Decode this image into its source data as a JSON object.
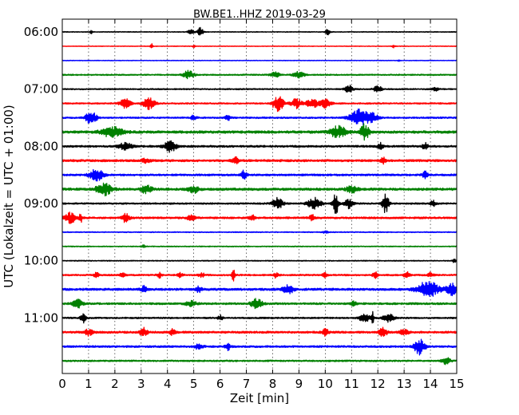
{
  "chart_data": {
    "type": "line",
    "title": "BW.BE1..HHZ 2019-03-29",
    "xlabel": "Zeit  [min]",
    "ylabel": "UTC (Lokalzeit = UTC + 01:00)",
    "xlim": [
      0,
      15
    ],
    "x_ticks": [
      "0",
      "1",
      "2",
      "3",
      "4",
      "5",
      "6",
      "7",
      "8",
      "9",
      "10",
      "11",
      "12",
      "13",
      "14",
      "15"
    ],
    "y_tick_labels": [
      "06:00",
      "07:00",
      "08:00",
      "09:00",
      "10:00",
      "11:00"
    ],
    "line_interval_minutes": 15,
    "trace_colors": [
      "#000000",
      "#ff0000",
      "#0000ff",
      "#008000"
    ],
    "grid": "vertical dotted at each minute",
    "traces": [
      {
        "start": "06:00",
        "color": "#000000",
        "noise": 0.5,
        "events": [
          [
            1.1,
            2.5,
            0.05
          ],
          [
            4.9,
            2.5,
            0.12
          ],
          [
            5.25,
            5.5,
            0.1
          ],
          [
            10.1,
            4,
            0.08
          ]
        ]
      },
      {
        "start": "06:15",
        "color": "#ff0000",
        "noise": 0.4,
        "events": [
          [
            3.4,
            3,
            0.05
          ],
          [
            5.0,
            1.5,
            0.05
          ],
          [
            12.6,
            2,
            0.05
          ]
        ]
      },
      {
        "start": "06:30",
        "color": "#0000ff",
        "noise": 0.4,
        "events": [
          [
            12.8,
            1.2,
            0.05
          ]
        ]
      },
      {
        "start": "06:45",
        "color": "#008000",
        "noise": 0.8,
        "events": [
          [
            4.8,
            5,
            0.2
          ],
          [
            8.1,
            3,
            0.2
          ],
          [
            9.0,
            4,
            0.2
          ]
        ]
      },
      {
        "start": "07:00",
        "color": "#000000",
        "noise": 0.8,
        "events": [
          [
            10.9,
            5,
            0.15
          ],
          [
            12.0,
            4,
            0.15
          ],
          [
            14.2,
            3,
            0.1
          ]
        ]
      },
      {
        "start": "07:15",
        "color": "#ff0000",
        "noise": 0.9,
        "events": [
          [
            2.4,
            6,
            0.2
          ],
          [
            3.3,
            7,
            0.22
          ],
          [
            8.2,
            10,
            0.2
          ],
          [
            8.9,
            6,
            0.2
          ],
          [
            9.5,
            6,
            0.2
          ],
          [
            10.0,
            6,
            0.2
          ]
        ]
      },
      {
        "start": "07:30",
        "color": "#0000ff",
        "noise": 1.0,
        "events": [
          [
            1.1,
            8,
            0.2
          ],
          [
            5.0,
            3,
            0.1
          ],
          [
            6.3,
            3,
            0.1
          ],
          [
            11.3,
            10,
            0.35
          ],
          [
            11.8,
            5,
            0.2
          ]
        ]
      },
      {
        "start": "07:45",
        "color": "#008000",
        "noise": 1.6,
        "events": [
          [
            1.9,
            6,
            0.4
          ],
          [
            10.5,
            7,
            0.3
          ],
          [
            11.5,
            10,
            0.15
          ]
        ]
      },
      {
        "start": "08:00",
        "color": "#000000",
        "noise": 1.2,
        "events": [
          [
            2.4,
            4,
            0.25
          ],
          [
            4.1,
            7,
            0.22
          ],
          [
            12.1,
            4,
            0.1
          ],
          [
            13.8,
            4,
            0.1
          ]
        ]
      },
      {
        "start": "08:15",
        "color": "#ff0000",
        "noise": 1.4,
        "events": [
          [
            3.2,
            3,
            0.15
          ],
          [
            6.6,
            5,
            0.12
          ],
          [
            12.2,
            4,
            0.1
          ]
        ]
      },
      {
        "start": "08:30",
        "color": "#0000ff",
        "noise": 1.2,
        "events": [
          [
            1.3,
            7,
            0.25
          ],
          [
            6.9,
            6,
            0.1
          ],
          [
            13.8,
            4,
            0.1
          ]
        ]
      },
      {
        "start": "08:45",
        "color": "#008000",
        "noise": 1.5,
        "events": [
          [
            1.6,
            7,
            0.3
          ],
          [
            3.2,
            5,
            0.2
          ],
          [
            5.0,
            4,
            0.2
          ],
          [
            11.0,
            4,
            0.2
          ]
        ]
      },
      {
        "start": "09:00",
        "color": "#000000",
        "noise": 1.0,
        "events": [
          [
            8.2,
            7,
            0.2
          ],
          [
            9.6,
            7,
            0.25
          ],
          [
            10.4,
            14,
            0.1
          ],
          [
            10.9,
            6,
            0.15
          ],
          [
            12.3,
            12,
            0.12
          ],
          [
            14.1,
            4,
            0.1
          ]
        ]
      },
      {
        "start": "09:15",
        "color": "#ff0000",
        "noise": 1.2,
        "events": [
          [
            0.3,
            7,
            0.2
          ],
          [
            0.7,
            8,
            0.05
          ],
          [
            2.4,
            5,
            0.15
          ],
          [
            4.9,
            3,
            0.15
          ],
          [
            7.2,
            4,
            0.1
          ],
          [
            9.5,
            4,
            0.1
          ]
        ]
      },
      {
        "start": "09:30",
        "color": "#0000ff",
        "noise": 0.6,
        "events": [
          [
            10.0,
            1.5,
            0.1
          ]
        ]
      },
      {
        "start": "09:45",
        "color": "#008000",
        "noise": 0.6,
        "events": [
          [
            3.1,
            1.5,
            0.1
          ]
        ]
      },
      {
        "start": "10:00",
        "color": "#000000",
        "noise": 0.6,
        "events": [
          [
            14.9,
            4,
            0.05
          ]
        ]
      },
      {
        "start": "10:15",
        "color": "#ff0000",
        "noise": 1.0,
        "events": [
          [
            1.3,
            3,
            0.1
          ],
          [
            2.3,
            3,
            0.1
          ],
          [
            3.7,
            3,
            0.1
          ],
          [
            4.5,
            3,
            0.1
          ],
          [
            5.3,
            3,
            0.1
          ],
          [
            6.5,
            9,
            0.05
          ],
          [
            8.1,
            3,
            0.1
          ],
          [
            10.0,
            3,
            0.1
          ],
          [
            11.9,
            4,
            0.1
          ],
          [
            13.1,
            4,
            0.1
          ],
          [
            14.0,
            3,
            0.1
          ]
        ]
      },
      {
        "start": "10:30",
        "color": "#0000ff",
        "noise": 1.4,
        "events": [
          [
            3.1,
            4,
            0.1
          ],
          [
            5.2,
            4,
            0.1
          ],
          [
            8.6,
            5,
            0.2
          ],
          [
            13.9,
            10,
            0.4
          ],
          [
            14.8,
            7,
            0.2
          ]
        ]
      },
      {
        "start": "10:45",
        "color": "#008000",
        "noise": 1.2,
        "events": [
          [
            0.6,
            5,
            0.2
          ],
          [
            4.9,
            3,
            0.2
          ],
          [
            7.4,
            7,
            0.2
          ],
          [
            11.1,
            3,
            0.1
          ]
        ]
      },
      {
        "start": "11:00",
        "color": "#000000",
        "noise": 1.0,
        "events": [
          [
            0.8,
            6,
            0.1
          ],
          [
            6.0,
            3,
            0.1
          ],
          [
            11.5,
            5,
            0.2
          ],
          [
            11.8,
            8,
            0.05
          ],
          [
            12.4,
            5,
            0.2
          ]
        ]
      },
      {
        "start": "11:15",
        "color": "#ff0000",
        "noise": 1.3,
        "events": [
          [
            1.0,
            4,
            0.15
          ],
          [
            3.1,
            5,
            0.15
          ],
          [
            4.2,
            4,
            0.1
          ],
          [
            10.0,
            6,
            0.1
          ],
          [
            12.2,
            5,
            0.15
          ],
          [
            13.0,
            4,
            0.15
          ]
        ]
      },
      {
        "start": "11:30",
        "color": "#0000ff",
        "noise": 1.2,
        "events": [
          [
            5.2,
            4,
            0.15
          ],
          [
            6.3,
            4,
            0.1
          ],
          [
            13.6,
            10,
            0.2
          ]
        ]
      },
      {
        "start": "11:45",
        "color": "#008000",
        "noise": 1.0,
        "events": [
          [
            14.6,
            4,
            0.15
          ]
        ]
      }
    ]
  }
}
